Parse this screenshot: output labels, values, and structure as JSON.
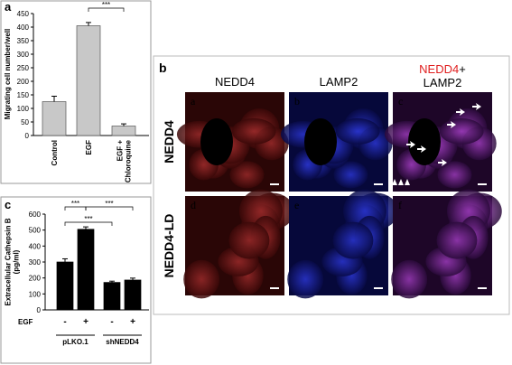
{
  "chart_data": [
    {
      "type": "bar",
      "panel": "a",
      "ylabel": "Migrating cell number/well",
      "categories": [
        "Control",
        "EGF",
        "EGF +\nChloroquine"
      ],
      "values": [
        125,
        405,
        35
      ],
      "errors": [
        20,
        12,
        8
      ],
      "color": "#c8c8c8",
      "ylim": [
        0,
        450
      ],
      "yticks": [
        0,
        50,
        100,
        150,
        200,
        250,
        300,
        350,
        400,
        450
      ],
      "significance": [
        {
          "from": 1,
          "to": 2,
          "label": "***"
        }
      ]
    },
    {
      "type": "bar",
      "panel": "c",
      "ylabel": "Extracellular Cathepsin B\n(pg/ml)",
      "categories": [
        "-",
        "+",
        "-",
        "+"
      ],
      "row_label": "EGF",
      "groups": [
        "pLKO.1",
        "shNEDD4"
      ],
      "values": [
        300,
        505,
        172,
        187
      ],
      "errors": [
        20,
        15,
        8,
        12
      ],
      "color": "#000000",
      "ylim": [
        0,
        600
      ],
      "yticks": [
        0,
        100,
        200,
        300,
        400,
        500,
        600
      ],
      "significance": [
        {
          "from": 0,
          "to": 1,
          "label": "***"
        },
        {
          "from": 1,
          "to": 3,
          "label": "***"
        },
        {
          "from": 0,
          "to": 2,
          "label": "***"
        }
      ]
    }
  ],
  "panel_b": {
    "label": "b",
    "columns": [
      "NEDD4",
      "LAMP2"
    ],
    "merge": [
      "NEDD4",
      "+",
      "LAMP2"
    ],
    "rows": [
      "NEDD4",
      "NEDD4-LD"
    ],
    "subpanels": [
      "a",
      "b",
      "c",
      "d",
      "e",
      "f"
    ]
  }
}
